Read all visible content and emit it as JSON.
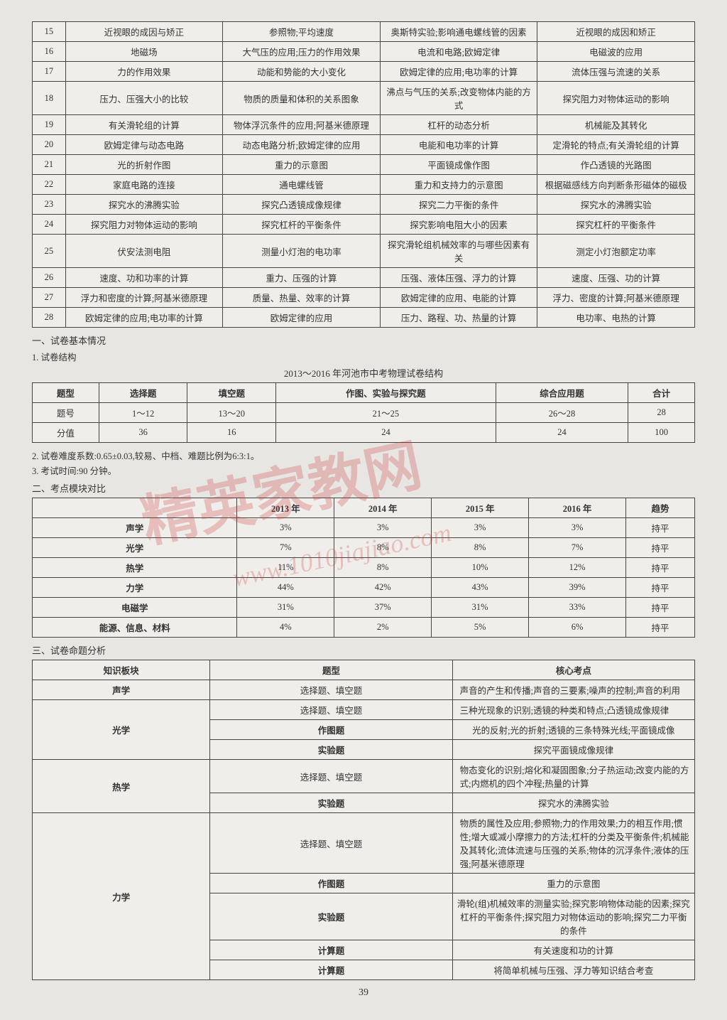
{
  "table1": {
    "rows": [
      [
        "15",
        "近视眼的成因与矫正",
        "参照物;平均速度",
        "奥斯特实验;影响通电螺线管的因素",
        "近视眼的成因和矫正"
      ],
      [
        "16",
        "地磁场",
        "大气压的应用;压力的作用效果",
        "电流和电路;欧姆定律",
        "电磁波的应用"
      ],
      [
        "17",
        "力的作用效果",
        "动能和势能的大小变化",
        "欧姆定律的应用;电功率的计算",
        "流体压强与流速的关系"
      ],
      [
        "18",
        "压力、压强大小的比较",
        "物质的质量和体积的关系图象",
        "沸点与气压的关系;改变物体内能的方式",
        "探究阻力对物体运动的影响"
      ],
      [
        "19",
        "有关滑轮组的计算",
        "物体浮沉条件的应用;阿基米德原理",
        "杠杆的动态分析",
        "机械能及其转化"
      ],
      [
        "20",
        "欧姆定律与动态电路",
        "动态电路分析;欧姆定律的应用",
        "电能和电功率的计算",
        "定滑轮的特点;有关滑轮组的计算"
      ],
      [
        "21",
        "光的折射作图",
        "重力的示意图",
        "平面镜成像作图",
        "作凸透镜的光路图"
      ],
      [
        "22",
        "家庭电路的连接",
        "通电螺线管",
        "重力和支持力的示意图",
        "根据磁感线方向判断条形磁体的磁极"
      ],
      [
        "23",
        "探究水的沸腾实验",
        "探究凸透镜成像规律",
        "探究二力平衡的条件",
        "探究水的沸腾实验"
      ],
      [
        "24",
        "探究阻力对物体运动的影响",
        "探究杠杆的平衡条件",
        "探究影响电阻大小的因素",
        "探究杠杆的平衡条件"
      ],
      [
        "25",
        "伏安法测电阻",
        "测量小灯泡的电功率",
        "探究滑轮组机械效率的与哪些因素有关",
        "测定小灯泡额定功率"
      ],
      [
        "26",
        "速度、功和功率的计算",
        "重力、压强的计算",
        "压强、液体压强、浮力的计算",
        "速度、压强、功的计算"
      ],
      [
        "27",
        "浮力和密度的计算;阿基米德原理",
        "质量、热量、效率的计算",
        "欧姆定律的应用、电能的计算",
        "浮力、密度的计算;阿基米德原理"
      ],
      [
        "28",
        "欧姆定律的应用;电功率的计算",
        "欧姆定律的应用",
        "压力、路程、功、热量的计算",
        "电功率、电热的计算"
      ]
    ]
  },
  "section1": {
    "title": "一、试卷基本情况",
    "sub1": "1. 试卷结构",
    "tableTitle": "2013～2016 年河池市中考物理试卷结构",
    "headers": [
      "题型",
      "选择题",
      "填空题",
      "作图、实验与探究题",
      "综合应用题",
      "合计"
    ],
    "rows": [
      [
        "题号",
        "1～12",
        "13～20",
        "21～25",
        "26～28",
        "28"
      ],
      [
        "分值",
        "36",
        "16",
        "24",
        "24",
        "100"
      ]
    ],
    "sub2": "2. 试卷难度系数:0.65±0.03,较易、中档、难题比例为6:3:1。",
    "sub3": "3. 考试时间:90 分钟。"
  },
  "section2": {
    "title": "二、考点模块对比",
    "headers": [
      "",
      "2013 年",
      "2014 年",
      "2015 年",
      "2016 年",
      "趋势"
    ],
    "rows": [
      [
        "声学",
        "3%",
        "3%",
        "3%",
        "3%",
        "持平"
      ],
      [
        "光学",
        "7%",
        "8%",
        "8%",
        "7%",
        "持平"
      ],
      [
        "热学",
        "11%",
        "8%",
        "10%",
        "12%",
        "持平"
      ],
      [
        "力学",
        "44%",
        "42%",
        "43%",
        "39%",
        "持平"
      ],
      [
        "电磁学",
        "31%",
        "37%",
        "31%",
        "33%",
        "持平"
      ],
      [
        "能源、信息、材料",
        "4%",
        "2%",
        "5%",
        "6%",
        "持平"
      ]
    ]
  },
  "section3": {
    "title": "三、试卷命题分析",
    "headers": [
      "知识板块",
      "题型",
      "核心考点"
    ],
    "rows": [
      {
        "module": "声学",
        "rowspan": 1,
        "items": [
          [
            "选择题、填空题",
            "声音的产生和传播;声音的三要素;噪声的控制;声音的利用"
          ]
        ]
      },
      {
        "module": "光学",
        "rowspan": 3,
        "items": [
          [
            "选择题、填空题",
            "三种光现象的识别;透镜的种类和特点;凸透镜成像规律"
          ],
          [
            "作图题",
            "光的反射;光的折射;透镜的三条特殊光线;平面镜成像"
          ],
          [
            "实验题",
            "探究平面镜成像规律"
          ]
        ]
      },
      {
        "module": "热学",
        "rowspan": 2,
        "items": [
          [
            "选择题、填空题",
            "物态变化的识别;熔化和凝固图象;分子热运动;改变内能的方式;内燃机的四个冲程;热量的计算"
          ],
          [
            "实验题",
            "探究水的沸腾实验"
          ]
        ]
      },
      {
        "module": "力学",
        "rowspan": 5,
        "items": [
          [
            "选择题、填空题",
            "物质的属性及应用;参照物;力的作用效果;力的相互作用;惯性;增大或减小摩擦力的方法;杠杆的分类及平衡条件;机械能及其转化;流体流速与压强的关系;物体的沉浮条件;液体的压强;阿基米德原理"
          ],
          [
            "作图题",
            "重力的示意图"
          ],
          [
            "实验题",
            "滑轮(组)机械效率的测量实验;探究影响物体动能的因素;探究杠杆的平衡条件;探究阻力对物体运动的影响;探究二力平衡的条件"
          ],
          [
            "计算题",
            "有关速度和功的计算"
          ],
          [
            "计算题",
            "将简单机械与压强、浮力等知识结合考查"
          ]
        ]
      }
    ]
  },
  "watermark": {
    "text": "精英家教网",
    "url": "www.1010jiajiao.com"
  },
  "pageNum": "39"
}
